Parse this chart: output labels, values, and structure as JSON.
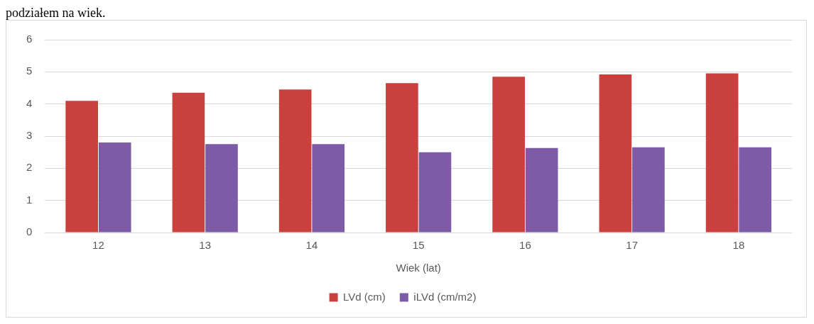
{
  "chart_data": {
    "type": "bar",
    "annotations": [
      "podziałem na wiek."
    ],
    "xlabel": "Wiek (lat)",
    "categories": [
      "12",
      "13",
      "14",
      "15",
      "16",
      "17",
      "18"
    ],
    "series": [
      {
        "name": "LVd (cm)",
        "color": "#c9403d",
        "values": [
          4.1,
          4.35,
          4.45,
          4.65,
          4.85,
          4.92,
          4.95
        ]
      },
      {
        "name": "iLVd (cm/m2)",
        "color": "#7d5ba6",
        "values": [
          2.8,
          2.75,
          2.75,
          2.5,
          2.63,
          2.65,
          2.65
        ]
      }
    ],
    "ylim": [
      0,
      6
    ],
    "yticks": [
      0,
      1,
      2,
      3,
      4,
      5,
      6
    ],
    "grid": "y",
    "legend": "bottom"
  }
}
